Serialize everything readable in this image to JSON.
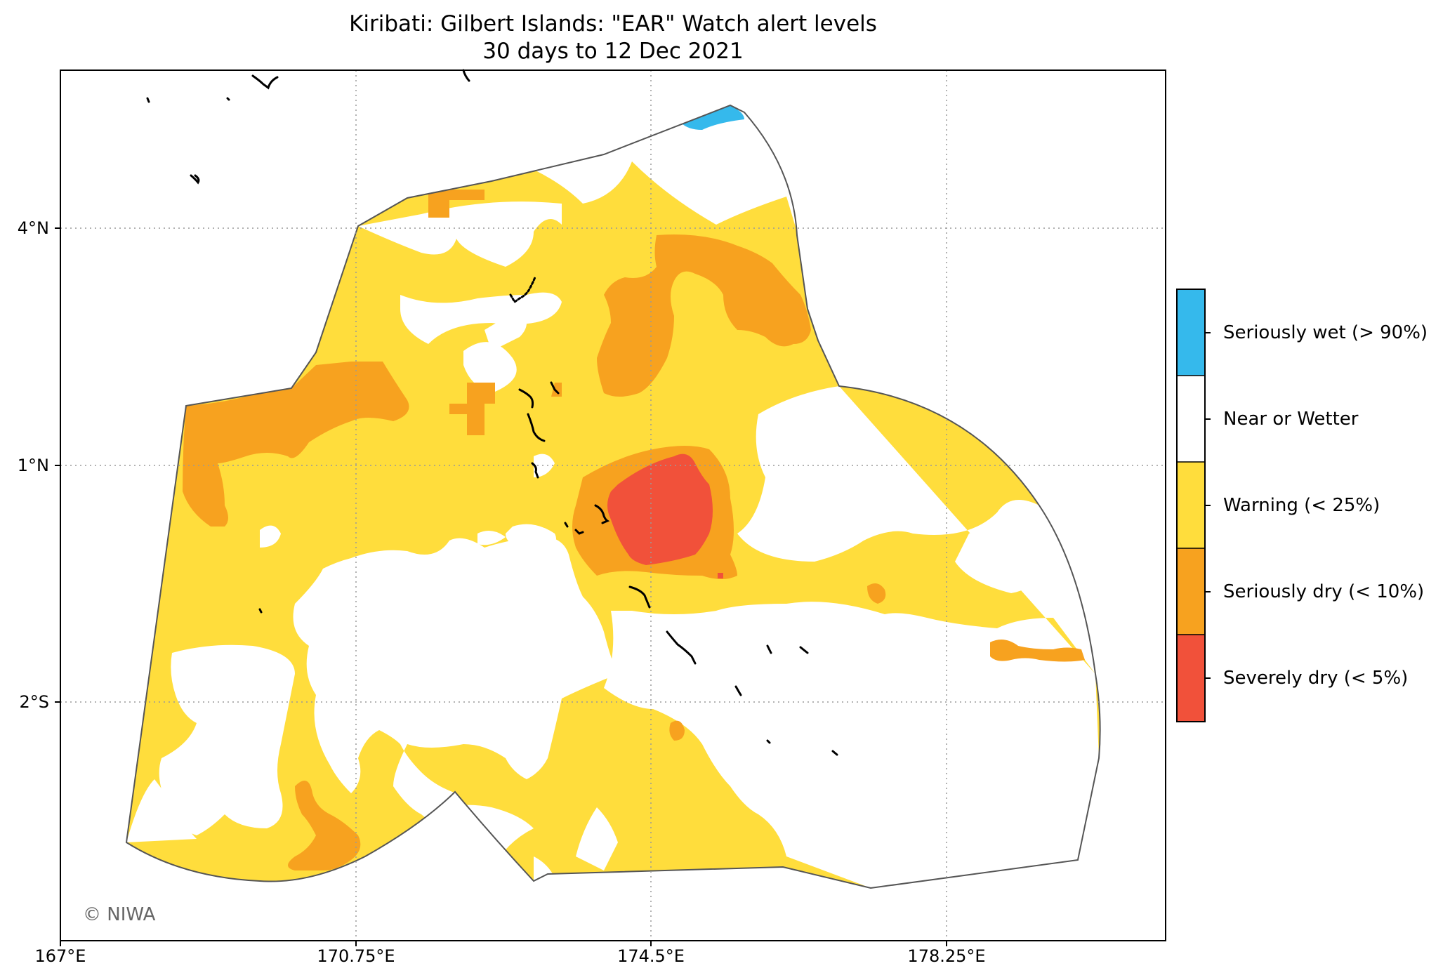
{
  "title": {
    "line1": "Kiribati: Gilbert Islands: \"EAR\" Watch alert levels",
    "line2": "30 days to 12 Dec 2021"
  },
  "map": {
    "region": "Kiribati: Gilbert Islands",
    "x_ticks": [
      "167°E",
      "170.75°E",
      "174.5°E",
      "178.25°E"
    ],
    "y_ticks": [
      "4°N",
      "1°N",
      "2°S"
    ],
    "gridlines": "dotted",
    "credit": "© NIWA"
  },
  "legend": {
    "placement": "right",
    "items": [
      {
        "label": "Seriously wet (> 90%)",
        "color": "#35b9ec"
      },
      {
        "label": "Near or Wetter",
        "color": "#ffffff"
      },
      {
        "label": "Warning (< 25%)",
        "color": "#ffdd3c"
      },
      {
        "label": "Seriously dry (< 10%)",
        "color": "#f7a21f"
      },
      {
        "label": "Severely dry (< 5%)",
        "color": "#f1513a"
      }
    ]
  },
  "colors": {
    "warning": "#ffdd3c",
    "seriously_dry": "#f7a21f",
    "severely_dry": "#f1513a",
    "seriously_wet": "#35b9ec",
    "boundary": "#555555"
  }
}
